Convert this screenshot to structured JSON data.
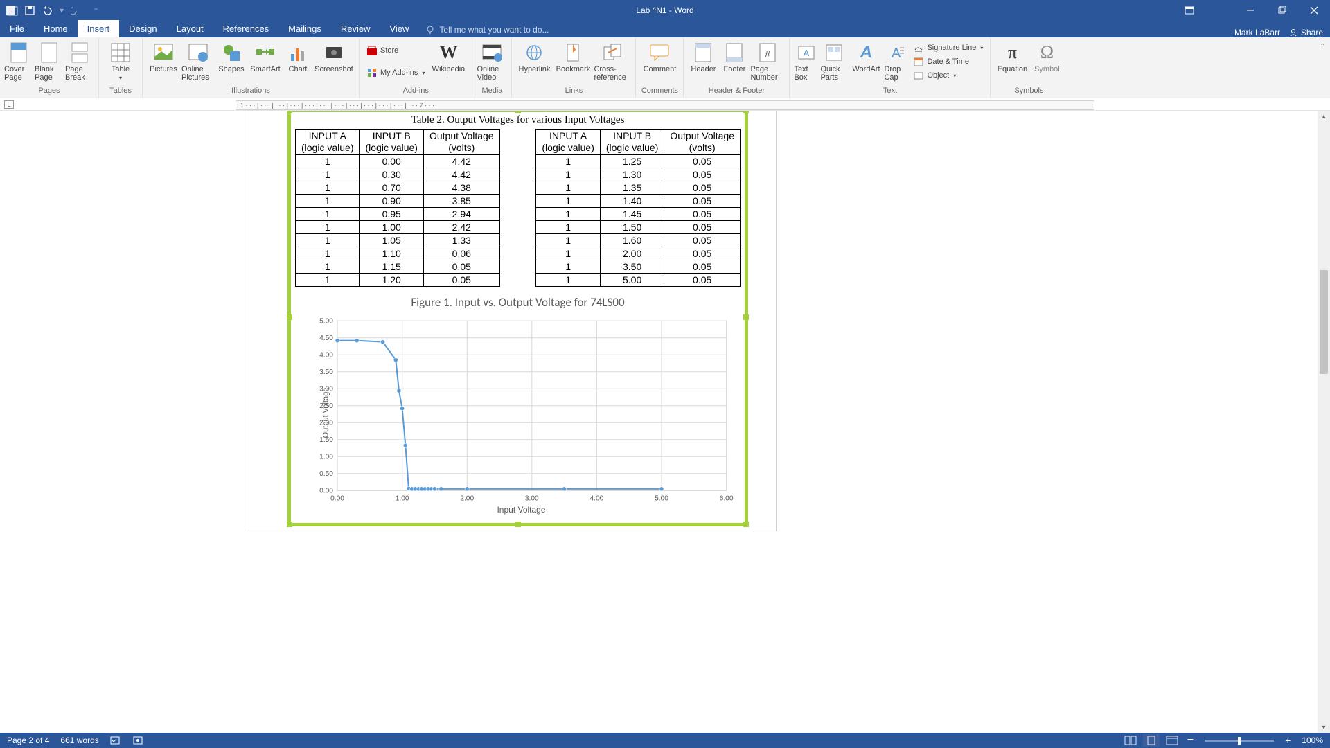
{
  "titlebar": {
    "title": "Lab ^N1 - Word"
  },
  "tabs": {
    "file": "File",
    "home": "Home",
    "insert": "Insert",
    "design": "Design",
    "layout": "Layout",
    "references": "References",
    "mailings": "Mailings",
    "review": "Review",
    "view": "View",
    "tellme": "Tell me what you want to do..."
  },
  "user": {
    "name": "Mark LaBarr",
    "share": "Share"
  },
  "ribbon": {
    "pages": {
      "label": "Pages",
      "cover": "Cover Page",
      "blank": "Blank Page",
      "break": "Page Break"
    },
    "tables": {
      "label": "Tables",
      "table": "Table"
    },
    "illustrations": {
      "label": "Illustrations",
      "pictures": "Pictures",
      "online": "Online Pictures",
      "shapes": "Shapes",
      "smartart": "SmartArt",
      "chart": "Chart",
      "screenshot": "Screenshot"
    },
    "addins": {
      "label": "Add-ins",
      "store": "Store",
      "myaddins": "My Add-ins",
      "wikipedia": "Wikipedia"
    },
    "media": {
      "label": "Media",
      "video": "Online Video"
    },
    "links": {
      "label": "Links",
      "hyperlink": "Hyperlink",
      "bookmark": "Bookmark",
      "crossref": "Cross-reference"
    },
    "comments": {
      "label": "Comments",
      "comment": "Comment"
    },
    "header_footer": {
      "label": "Header & Footer",
      "header": "Header",
      "footer": "Footer",
      "pagenum": "Page Number"
    },
    "text": {
      "label": "Text",
      "textbox": "Text Box",
      "quickparts": "Quick Parts",
      "wordart": "WordArt",
      "dropcap": "Drop Cap",
      "sigline": "Signature Line",
      "datetime": "Date & Time",
      "object": "Object"
    },
    "symbols": {
      "label": "Symbols",
      "equation": "Equation",
      "symbol": "Symbol"
    }
  },
  "doc": {
    "table_caption": "Table 2. Output Voltages for various Input Voltages",
    "headers": {
      "a": "INPUT A",
      "a2": "(logic value)",
      "b": "INPUT B",
      "b2": "(logic value)",
      "out": "Output Voltage",
      "out2": "(volts)"
    },
    "left_rows": [
      [
        "1",
        "0.00",
        "4.42"
      ],
      [
        "1",
        "0.30",
        "4.42"
      ],
      [
        "1",
        "0.70",
        "4.38"
      ],
      [
        "1",
        "0.90",
        "3.85"
      ],
      [
        "1",
        "0.95",
        "2.94"
      ],
      [
        "1",
        "1.00",
        "2.42"
      ],
      [
        "1",
        "1.05",
        "1.33"
      ],
      [
        "1",
        "1.10",
        "0.06"
      ],
      [
        "1",
        "1.15",
        "0.05"
      ],
      [
        "1",
        "1.20",
        "0.05"
      ]
    ],
    "right_rows": [
      [
        "1",
        "1.25",
        "0.05"
      ],
      [
        "1",
        "1.30",
        "0.05"
      ],
      [
        "1",
        "1.35",
        "0.05"
      ],
      [
        "1",
        "1.40",
        "0.05"
      ],
      [
        "1",
        "1.45",
        "0.05"
      ],
      [
        "1",
        "1.50",
        "0.05"
      ],
      [
        "1",
        "1.60",
        "0.05"
      ],
      [
        "1",
        "2.00",
        "0.05"
      ],
      [
        "1",
        "3.50",
        "0.05"
      ],
      [
        "1",
        "5.00",
        "0.05"
      ]
    ],
    "figure_caption": "Figure 1. Input vs. Output Voltage for 74LS00",
    "chart": {
      "type": "line",
      "x_label": "Input Voltage",
      "y_label": "Output Voltage",
      "xlim": [
        0,
        6
      ],
      "ylim": [
        0,
        5
      ],
      "x_ticks": [
        "0.00",
        "1.00",
        "2.00",
        "3.00",
        "4.00",
        "5.00",
        "6.00"
      ],
      "y_ticks": [
        "0.00",
        "0.50",
        "1.00",
        "1.50",
        "2.00",
        "2.50",
        "3.00",
        "3.50",
        "4.00",
        "4.50",
        "5.00"
      ],
      "line_color": "#5b9bd5",
      "marker_color": "#5b9bd5",
      "grid_color": "#d9d9d9",
      "background_color": "#ffffff",
      "points": [
        [
          0.0,
          4.42
        ],
        [
          0.3,
          4.42
        ],
        [
          0.7,
          4.38
        ],
        [
          0.9,
          3.85
        ],
        [
          0.95,
          2.94
        ],
        [
          1.0,
          2.42
        ],
        [
          1.05,
          1.33
        ],
        [
          1.1,
          0.06
        ],
        [
          1.15,
          0.05
        ],
        [
          1.2,
          0.05
        ],
        [
          1.25,
          0.05
        ],
        [
          1.3,
          0.05
        ],
        [
          1.35,
          0.05
        ],
        [
          1.4,
          0.05
        ],
        [
          1.45,
          0.05
        ],
        [
          1.5,
          0.05
        ],
        [
          1.6,
          0.05
        ],
        [
          2.0,
          0.05
        ],
        [
          3.5,
          0.05
        ],
        [
          5.0,
          0.05
        ]
      ]
    }
  },
  "statusbar": {
    "page": "Page 2 of 4",
    "words": "661 words",
    "zoom": "100%"
  }
}
